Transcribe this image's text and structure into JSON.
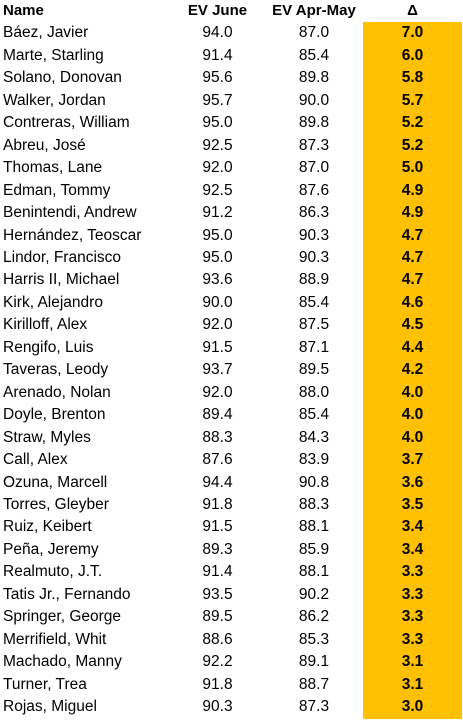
{
  "colors": {
    "delta_highlight": "#ffc000"
  },
  "columns": [
    "Name",
    "EV June",
    "EV Apr-May",
    "Δ"
  ],
  "rows": [
    {
      "name": "Báez, Javier",
      "ev_june": "94.0",
      "ev_aprmay": "87.0",
      "delta": "7.0"
    },
    {
      "name": "Marte, Starling",
      "ev_june": "91.4",
      "ev_aprmay": "85.4",
      "delta": "6.0"
    },
    {
      "name": "Solano, Donovan",
      "ev_june": "95.6",
      "ev_aprmay": "89.8",
      "delta": "5.8"
    },
    {
      "name": "Walker, Jordan",
      "ev_june": "95.7",
      "ev_aprmay": "90.0",
      "delta": "5.7"
    },
    {
      "name": "Contreras, William",
      "ev_june": "95.0",
      "ev_aprmay": "89.8",
      "delta": "5.2"
    },
    {
      "name": "Abreu, José",
      "ev_june": "92.5",
      "ev_aprmay": "87.3",
      "delta": "5.2"
    },
    {
      "name": "Thomas, Lane",
      "ev_june": "92.0",
      "ev_aprmay": "87.0",
      "delta": "5.0"
    },
    {
      "name": "Edman, Tommy",
      "ev_june": "92.5",
      "ev_aprmay": "87.6",
      "delta": "4.9"
    },
    {
      "name": "Benintendi, Andrew",
      "ev_june": "91.2",
      "ev_aprmay": "86.3",
      "delta": "4.9"
    },
    {
      "name": "Hernández, Teoscar",
      "ev_june": "95.0",
      "ev_aprmay": "90.3",
      "delta": "4.7"
    },
    {
      "name": "Lindor, Francisco",
      "ev_june": "95.0",
      "ev_aprmay": "90.3",
      "delta": "4.7"
    },
    {
      "name": "Harris II, Michael",
      "ev_june": "93.6",
      "ev_aprmay": "88.9",
      "delta": "4.7"
    },
    {
      "name": "Kirk, Alejandro",
      "ev_june": "90.0",
      "ev_aprmay": "85.4",
      "delta": "4.6"
    },
    {
      "name": "Kirilloff, Alex",
      "ev_june": "92.0",
      "ev_aprmay": "87.5",
      "delta": "4.5"
    },
    {
      "name": "Rengifo, Luis",
      "ev_june": "91.5",
      "ev_aprmay": "87.1",
      "delta": "4.4"
    },
    {
      "name": "Taveras, Leody",
      "ev_june": "93.7",
      "ev_aprmay": "89.5",
      "delta": "4.2"
    },
    {
      "name": "Arenado, Nolan",
      "ev_june": "92.0",
      "ev_aprmay": "88.0",
      "delta": "4.0"
    },
    {
      "name": "Doyle, Brenton",
      "ev_june": "89.4",
      "ev_aprmay": "85.4",
      "delta": "4.0"
    },
    {
      "name": "Straw, Myles",
      "ev_june": "88.3",
      "ev_aprmay": "84.3",
      "delta": "4.0"
    },
    {
      "name": "Call, Alex",
      "ev_june": "87.6",
      "ev_aprmay": "83.9",
      "delta": "3.7"
    },
    {
      "name": "Ozuna, Marcell",
      "ev_june": "94.4",
      "ev_aprmay": "90.8",
      "delta": "3.6"
    },
    {
      "name": "Torres, Gleyber",
      "ev_june": "91.8",
      "ev_aprmay": "88.3",
      "delta": "3.5"
    },
    {
      "name": "Ruiz, Keibert",
      "ev_june": "91.5",
      "ev_aprmay": "88.1",
      "delta": "3.4"
    },
    {
      "name": "Peña, Jeremy",
      "ev_june": "89.3",
      "ev_aprmay": "85.9",
      "delta": "3.4"
    },
    {
      "name": "Realmuto, J.T.",
      "ev_june": "91.4",
      "ev_aprmay": "88.1",
      "delta": "3.3"
    },
    {
      "name": "Tatis Jr., Fernando",
      "ev_june": "93.5",
      "ev_aprmay": "90.2",
      "delta": "3.3"
    },
    {
      "name": "Springer, George",
      "ev_june": "89.5",
      "ev_aprmay": "86.2",
      "delta": "3.3"
    },
    {
      "name": "Merrifield, Whit",
      "ev_june": "88.6",
      "ev_aprmay": "85.3",
      "delta": "3.3"
    },
    {
      "name": "Machado, Manny",
      "ev_june": "92.2",
      "ev_aprmay": "89.1",
      "delta": "3.1"
    },
    {
      "name": "Turner, Trea",
      "ev_june": "91.8",
      "ev_aprmay": "88.7",
      "delta": "3.1"
    },
    {
      "name": "Rojas, Miguel",
      "ev_june": "90.3",
      "ev_aprmay": "87.3",
      "delta": "3.0"
    }
  ]
}
